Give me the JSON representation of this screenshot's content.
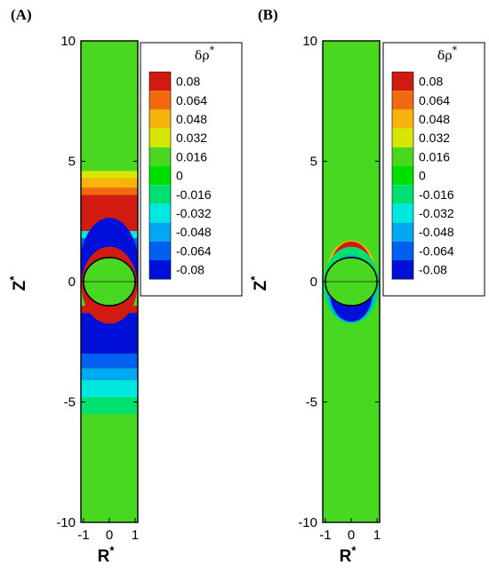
{
  "chart_data": [
    {
      "type": "heatmap",
      "panel_label": "(A)",
      "xlabel": "R",
      "ylabel": "Z",
      "axis_superscript": "*",
      "xlim": [
        -1.1,
        1.1
      ],
      "ylim": [
        -10,
        10
      ],
      "xticks": [
        "-1",
        "0",
        "1"
      ],
      "yticks": [
        "10",
        "5",
        "0",
        "-5",
        "-10"
      ],
      "legend": {
        "title": "δρ",
        "title_superscript": "*",
        "placement": "top-right",
        "levels": [
          "0.08",
          "0.064",
          "0.048",
          "0.032",
          "0.016",
          "0",
          "-0.016",
          "-0.032",
          "-0.048",
          "-0.064",
          "-0.08"
        ],
        "colors": [
          "#d11a10",
          "#f26a10",
          "#f8b40c",
          "#d6e800",
          "#48d820",
          "#00e000",
          "#00e070",
          "#00e8e0",
          "#00a8f0",
          "#0060f0",
          "#0010d8"
        ]
      },
      "sphere": {
        "center": [
          0,
          0
        ],
        "radius": 1
      },
      "bands": [
        {
          "z": [
            4.6,
            4.3
          ],
          "level": "0.032"
        },
        {
          "z": [
            4.3,
            3.9
          ],
          "level": "0.048"
        },
        {
          "z": [
            3.9,
            3.6
          ],
          "level": "0.064"
        },
        {
          "z": [
            3.6,
            2.1
          ],
          "level": "0.08"
        },
        {
          "z": [
            2.1,
            1.8
          ],
          "level": "-0.032"
        },
        {
          "z": [
            1.8,
            1.2
          ],
          "level": "-0.064"
        },
        {
          "z": [
            -1.0,
            -1.3
          ],
          "level": "0.08"
        },
        {
          "z": [
            -1.3,
            -3.0
          ],
          "level": "-0.08"
        },
        {
          "z": [
            -3.0,
            -3.6
          ],
          "level": "-0.064"
        },
        {
          "z": [
            -3.6,
            -4.1
          ],
          "level": "-0.048"
        },
        {
          "z": [
            -4.1,
            -4.8
          ],
          "level": "-0.032"
        },
        {
          "z": [
            -4.8,
            -5.5
          ],
          "level": "-0.016"
        }
      ],
      "background_level": "0.016"
    },
    {
      "type": "heatmap",
      "panel_label": "(B)",
      "xlabel": "R",
      "ylabel": "Z",
      "axis_superscript": "*",
      "xlim": [
        -1.1,
        1.1
      ],
      "ylim": [
        -10,
        10
      ],
      "xticks": [
        "-1",
        "0",
        "1"
      ],
      "yticks": [
        "10",
        "5",
        "0",
        "-5",
        "-10"
      ],
      "legend": {
        "title": "δρ",
        "title_superscript": "*",
        "placement": "top-right",
        "levels": [
          "0.08",
          "0.064",
          "0.048",
          "0.032",
          "0.016",
          "0",
          "-0.016",
          "-0.032",
          "-0.048",
          "-0.064",
          "-0.08"
        ],
        "colors": [
          "#d11a10",
          "#f26a10",
          "#f8b40c",
          "#d6e800",
          "#48d820",
          "#00e000",
          "#00e070",
          "#00e8e0",
          "#00a8f0",
          "#0060f0",
          "#0010d8"
        ]
      },
      "sphere": {
        "center": [
          0,
          0
        ],
        "radius": 1
      },
      "caps": [
        {
          "side": "top",
          "reach": 1.6,
          "levels": [
            "0.016",
            "0.048",
            "0.08"
          ]
        },
        {
          "side": "bottom",
          "reach": 1.6,
          "levels": [
            "-0.016",
            "-0.048",
            "-0.08"
          ]
        }
      ],
      "background_level": "0.016"
    }
  ]
}
